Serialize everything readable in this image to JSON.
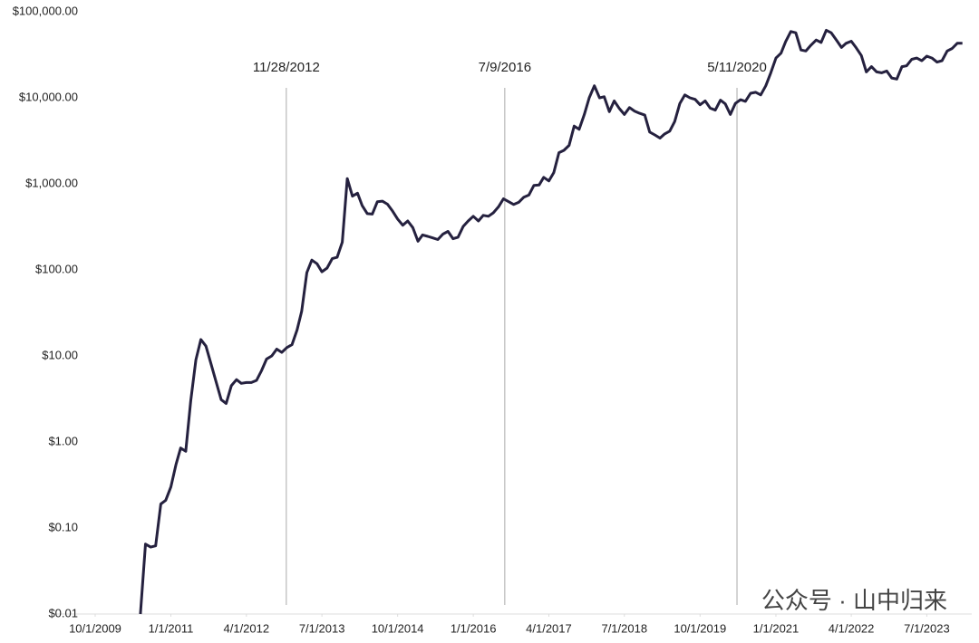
{
  "chart_data": {
    "type": "line",
    "log": true,
    "color": "#25213f",
    "xlim": [
      "10/1/2009",
      "3/1/2024"
    ],
    "xticks": [
      "10/1/2009",
      "1/1/2011",
      "4/1/2012",
      "7/1/2013",
      "10/1/2014",
      "1/1/2016",
      "4/1/2017",
      "7/1/2018",
      "10/1/2019",
      "1/1/2021",
      "4/1/2022",
      "7/1/2023"
    ],
    "ylim": [
      0.01,
      100000
    ],
    "yticks": [
      {
        "value": 0.01,
        "label": "$0.01"
      },
      {
        "value": 0.1,
        "label": "$0.10"
      },
      {
        "value": 1,
        "label": "$1.00"
      },
      {
        "value": 10,
        "label": "$10.00"
      },
      {
        "value": 100,
        "label": "$100.00"
      },
      {
        "value": 1000,
        "label": "$1,000.00"
      },
      {
        "value": 10000,
        "label": "$10,000.00"
      },
      {
        "value": 100000,
        "label": "$100,000.00"
      }
    ],
    "halvings": [
      "11/28/2012",
      "7/9/2016",
      "5/11/2020"
    ],
    "watermark": "公众号 · 山中归来",
    "x": [
      "7/1/2010",
      "8/1/2010",
      "9/1/2010",
      "10/1/2010",
      "11/1/2010",
      "12/1/2010",
      "1/1/2011",
      "2/1/2011",
      "3/1/2011",
      "4/1/2011",
      "5/1/2011",
      "6/1/2011",
      "7/1/2011",
      "8/1/2011",
      "9/1/2011",
      "10/1/2011",
      "11/1/2011",
      "12/1/2011",
      "1/1/2012",
      "2/1/2012",
      "3/1/2012",
      "4/1/2012",
      "5/1/2012",
      "6/1/2012",
      "7/1/2012",
      "8/1/2012",
      "9/1/2012",
      "10/1/2012",
      "11/1/2012",
      "12/1/2012",
      "1/1/2013",
      "2/1/2013",
      "3/1/2013",
      "4/1/2013",
      "5/1/2013",
      "6/1/2013",
      "7/1/2013",
      "8/1/2013",
      "9/1/2013",
      "10/1/2013",
      "11/1/2013",
      "12/1/2013",
      "1/1/2014",
      "2/1/2014",
      "3/1/2014",
      "4/1/2014",
      "5/1/2014",
      "6/1/2014",
      "7/1/2014",
      "8/1/2014",
      "9/1/2014",
      "10/1/2014",
      "11/1/2014",
      "12/1/2014",
      "1/1/2015",
      "2/1/2015",
      "3/1/2015",
      "4/1/2015",
      "5/1/2015",
      "6/1/2015",
      "7/1/2015",
      "8/1/2015",
      "9/1/2015",
      "10/1/2015",
      "11/1/2015",
      "12/1/2015",
      "1/1/2016",
      "2/1/2016",
      "3/1/2016",
      "4/1/2016",
      "5/1/2016",
      "6/1/2016",
      "7/1/2016",
      "8/1/2016",
      "9/1/2016",
      "10/1/2016",
      "11/1/2016",
      "12/1/2016",
      "1/1/2017",
      "2/1/2017",
      "3/1/2017",
      "4/1/2017",
      "5/1/2017",
      "6/1/2017",
      "7/1/2017",
      "8/1/2017",
      "9/1/2017",
      "10/1/2017",
      "11/1/2017",
      "12/1/2017",
      "1/1/2018",
      "2/1/2018",
      "3/1/2018",
      "4/1/2018",
      "5/1/2018",
      "6/1/2018",
      "7/1/2018",
      "8/1/2018",
      "9/1/2018",
      "10/1/2018",
      "11/1/2018",
      "12/1/2018",
      "1/1/2019",
      "2/1/2019",
      "3/1/2019",
      "4/1/2019",
      "5/1/2019",
      "6/1/2019",
      "7/1/2019",
      "8/1/2019",
      "9/1/2019",
      "10/1/2019",
      "11/1/2019",
      "12/1/2019",
      "1/1/2020",
      "2/1/2020",
      "3/1/2020",
      "4/1/2020",
      "5/1/2020",
      "6/1/2020",
      "7/1/2020",
      "8/1/2020",
      "9/1/2020",
      "10/1/2020",
      "11/1/2020",
      "12/1/2020",
      "1/1/2021",
      "2/1/2021",
      "3/1/2021",
      "4/1/2021",
      "5/1/2021",
      "6/1/2021",
      "7/1/2021",
      "8/1/2021",
      "9/1/2021",
      "10/1/2021",
      "11/1/2021",
      "12/1/2021",
      "1/1/2022",
      "2/1/2022",
      "3/1/2022",
      "4/1/2022",
      "5/1/2022",
      "6/1/2022",
      "7/1/2022",
      "8/1/2022",
      "9/1/2022",
      "10/1/2022",
      "11/1/2022",
      "12/1/2022",
      "1/1/2023",
      "2/1/2023",
      "3/1/2023",
      "4/1/2023",
      "5/1/2023",
      "6/1/2023",
      "7/1/2023",
      "8/1/2023",
      "9/1/2023",
      "10/1/2023",
      "11/1/2023",
      "12/1/2023",
      "1/1/2024",
      "2/1/2024"
    ],
    "values": [
      0.01,
      0.065,
      0.06,
      0.062,
      0.19,
      0.21,
      0.3,
      0.55,
      0.85,
      0.78,
      3.0,
      9,
      15.5,
      13,
      8,
      5,
      3.1,
      2.8,
      4.5,
      5.3,
      4.8,
      4.9,
      4.9,
      5.2,
      6.7,
      9.2,
      10,
      12,
      11,
      12.5,
      13.5,
      20,
      33,
      93,
      130,
      118,
      95,
      105,
      135,
      140,
      210,
      1150,
      720,
      780,
      560,
      450,
      445,
      620,
      630,
      580,
      480,
      390,
      330,
      370,
      310,
      215,
      255,
      245,
      235,
      225,
      260,
      280,
      230,
      240,
      320,
      370,
      420,
      370,
      430,
      420,
      460,
      540,
      670,
      620,
      575,
      610,
      700,
      740,
      960,
      970,
      1190,
      1080,
      1350,
      2300,
      2450,
      2800,
      4700,
      4300,
      6400,
      10000,
      13800,
      10000,
      10300,
      6900,
      9200,
      7500,
      6400,
      7700,
      7000,
      6600,
      6300,
      4000,
      3700,
      3400,
      3800,
      4100,
      5300,
      8600,
      10800,
      10000,
      9600,
      8300,
      9200,
      7600,
      7200,
      9400,
      8500,
      6400,
      8600,
      9500,
      9100,
      11300,
      11600,
      10800,
      13800,
      19500,
      29000,
      33000,
      45000,
      59000,
      57000,
      36000,
      35000,
      41000,
      47000,
      44000,
      61000,
      57000,
      47000,
      38500,
      43000,
      45500,
      38000,
      31000,
      20000,
      23000,
      20000,
      19500,
      20500,
      17000,
      16500,
      23000,
      23500,
      28000,
      29000,
      27000,
      30500,
      29000,
      26000,
      27000,
      35000,
      37500,
      43000,
      43000
    ]
  }
}
